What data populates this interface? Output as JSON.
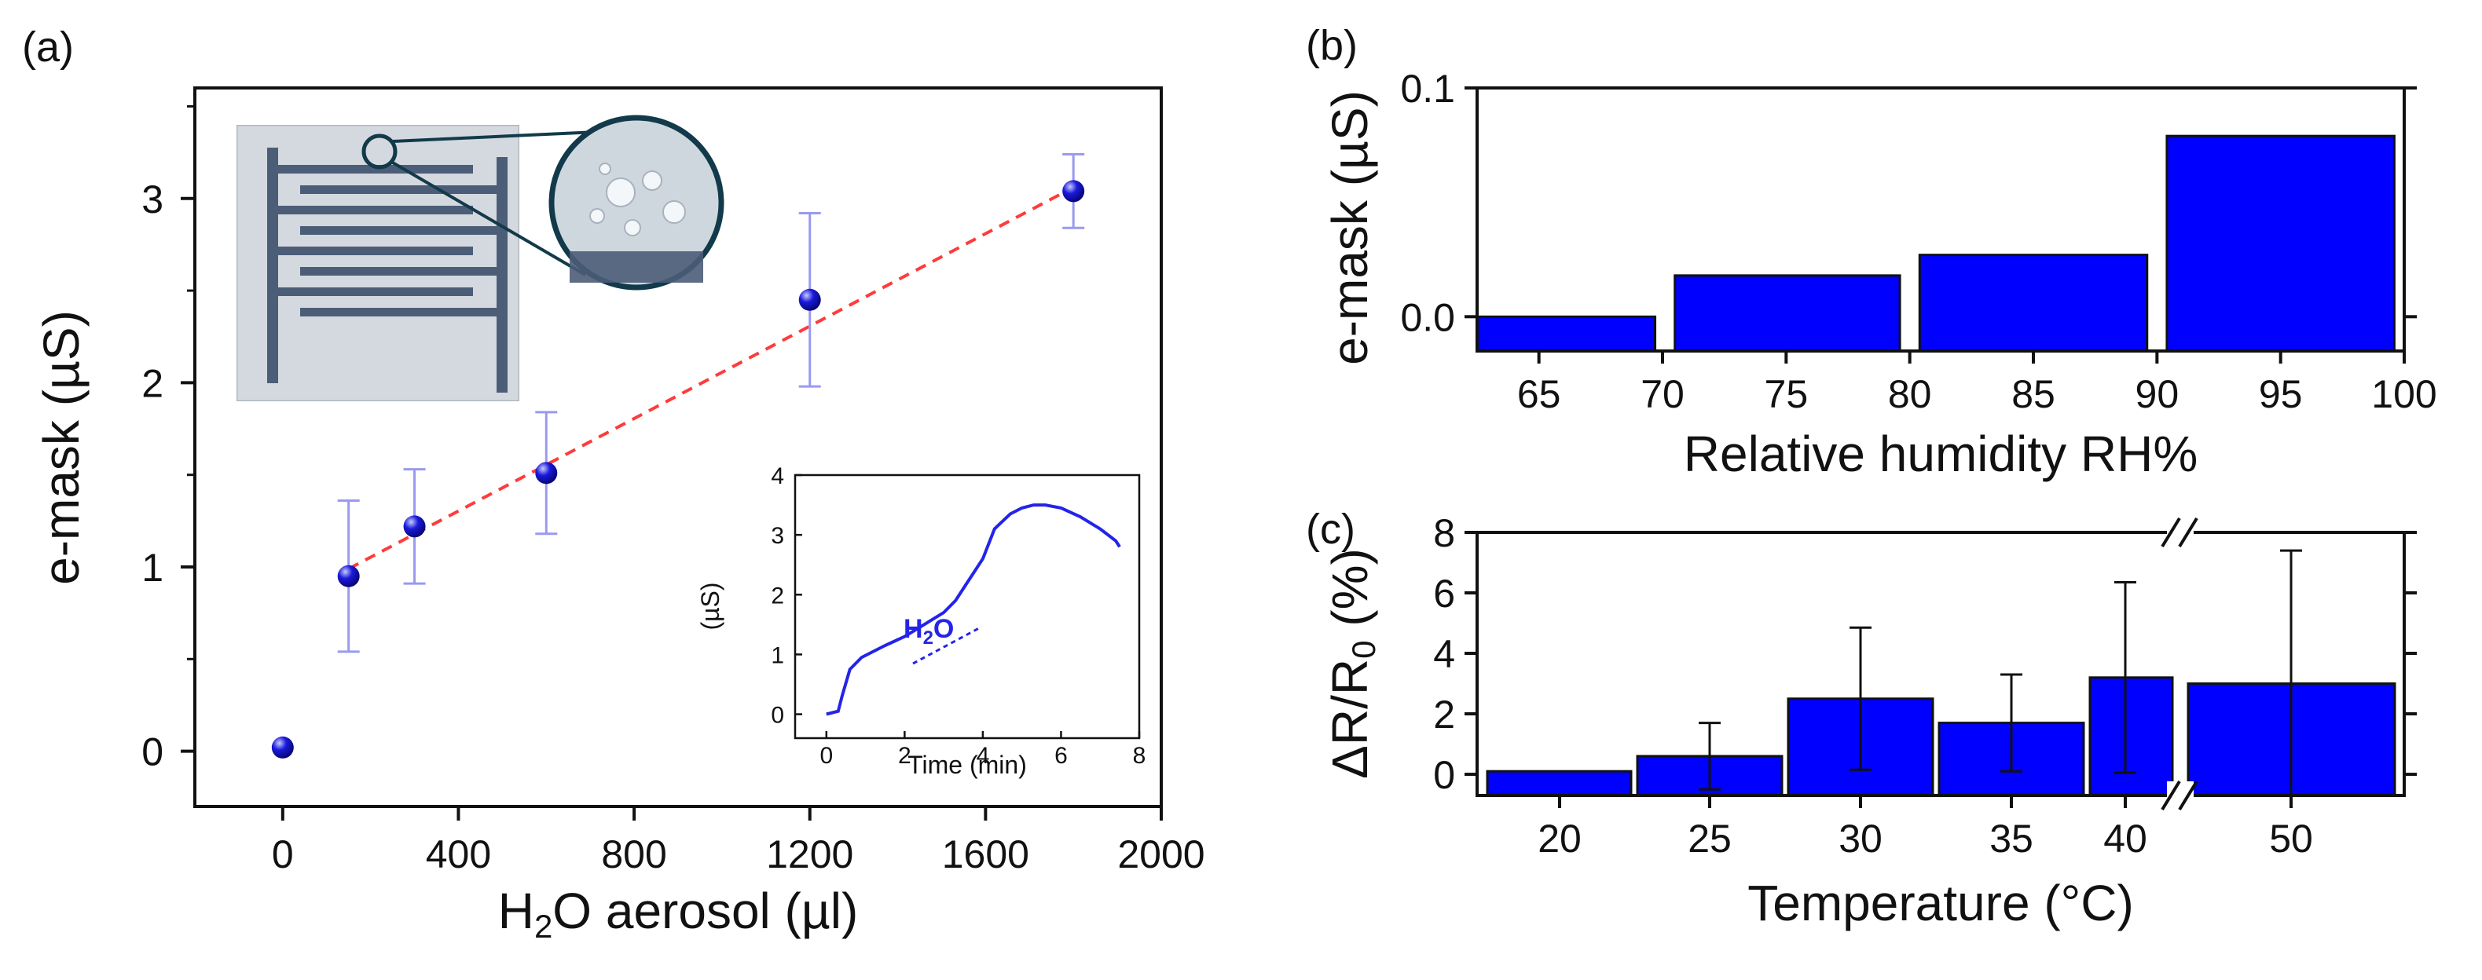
{
  "chart_data": [
    {
      "id": "a",
      "panel_label": "(a)",
      "type": "scatter",
      "xlabel_main": "H",
      "xlabel_sub": "2",
      "xlabel_rest": "O aerosol (µl)",
      "ylabel": "e-mask (µS)",
      "xlim": [
        -200,
        2000
      ],
      "ylim": [
        -0.3,
        3.6
      ],
      "xticks": [
        0,
        400,
        800,
        1200,
        1600,
        2000
      ],
      "xtick_labels": [
        "0",
        "400",
        "800",
        "1200",
        "1600",
        "2000"
      ],
      "yticks": [
        0,
        1,
        2,
        3
      ],
      "ytick_labels": [
        "0",
        "1",
        "2",
        "3"
      ],
      "points": [
        {
          "x": 0,
          "y": 0.02,
          "err": 0
        },
        {
          "x": 150,
          "y": 0.95,
          "err": 0.41
        },
        {
          "x": 300,
          "y": 1.22,
          "err": 0.31
        },
        {
          "x": 600,
          "y": 1.51,
          "err": 0.33
        },
        {
          "x": 1200,
          "y": 2.45,
          "err": 0.47
        },
        {
          "x": 1800,
          "y": 3.04,
          "err": 0.2
        }
      ],
      "fit_line": {
        "x": [
          150,
          1800
        ],
        "y": [
          0.99,
          3.06
        ]
      },
      "colors": {
        "point": "#1a1adb",
        "error_bar": "#9a9af0",
        "fit": "#ff3b3b"
      },
      "inset_photo": "sensor photo with zoom on water droplets",
      "inset_chart": {
        "type": "line",
        "xlabel": "Time (min)",
        "ylabel": "(µS)",
        "xlim": [
          -0.8,
          8
        ],
        "ylim": [
          -0.4,
          4
        ],
        "xticks": [
          0,
          2,
          4,
          6,
          8
        ],
        "xtick_labels": [
          "0",
          "2",
          "4",
          "6",
          "8"
        ],
        "yticks": [
          0,
          1,
          2,
          3,
          4
        ],
        "ytick_labels": [
          "0",
          "1",
          "2",
          "3",
          "4"
        ],
        "annotation_main": "H",
        "annotation_sub": "2",
        "annotation_rest": "O",
        "series": {
          "x": [
            0,
            0.3,
            0.4,
            0.6,
            0.9,
            1.2,
            1.5,
            2,
            2.5,
            3,
            3.3,
            3.6,
            4,
            4.3,
            4.7,
            5,
            5.3,
            5.6,
            6,
            6.5,
            7,
            7.2,
            7.4,
            7.5
          ],
          "y": [
            0,
            0.05,
            0.3,
            0.75,
            0.95,
            1.05,
            1.15,
            1.3,
            1.5,
            1.7,
            1.9,
            2.2,
            2.6,
            3.1,
            3.35,
            3.45,
            3.5,
            3.5,
            3.45,
            3.3,
            3.1,
            3.0,
            2.9,
            2.8
          ]
        }
      }
    },
    {
      "id": "b",
      "panel_label": "(b)",
      "type": "bar",
      "xlabel": "Relative humidity RH%",
      "ylabel": "e-mask (µS)",
      "xlim": [
        62.5,
        100
      ],
      "ylim": [
        -0.015,
        0.1
      ],
      "xticks": [
        65,
        70,
        75,
        80,
        85,
        90,
        95,
        100
      ],
      "xtick_labels": [
        "65",
        "70",
        "75",
        "80",
        "85",
        "90",
        "95",
        "100"
      ],
      "yticks": [
        0.0,
        0.1
      ],
      "ytick_labels": [
        "0.0",
        "0.1"
      ],
      "bars": [
        {
          "from": 62.5,
          "to": 69.7,
          "value": 0.0
        },
        {
          "from": 70.5,
          "to": 79.6,
          "value": 0.018
        },
        {
          "from": 80.4,
          "to": 89.6,
          "value": 0.027
        },
        {
          "from": 90.4,
          "to": 99.6,
          "value": 0.079
        }
      ],
      "colors": {
        "bar": "#0000ff"
      }
    },
    {
      "id": "c",
      "panel_label": "(c)",
      "type": "bar",
      "xlabel": "Temperature (°C)",
      "ylabel_main": "ΔR/R",
      "ylabel_sub": "0",
      "ylabel_rest": " (%)",
      "ylim": [
        -0.7,
        8
      ],
      "yticks": [
        0,
        2,
        4,
        6,
        8
      ],
      "ytick_labels": [
        "0",
        "2",
        "4",
        "6",
        "8"
      ],
      "categories": [
        "20",
        "25",
        "30",
        "35",
        "40",
        "50"
      ],
      "values": [
        0.1,
        0.6,
        2.5,
        1.7,
        3.2,
        3.0
      ],
      "errors": [
        0,
        1.1,
        2.35,
        1.6,
        3.15,
        4.4
      ],
      "axis_break": true,
      "colors": {
        "bar": "#0000ff"
      }
    }
  ]
}
